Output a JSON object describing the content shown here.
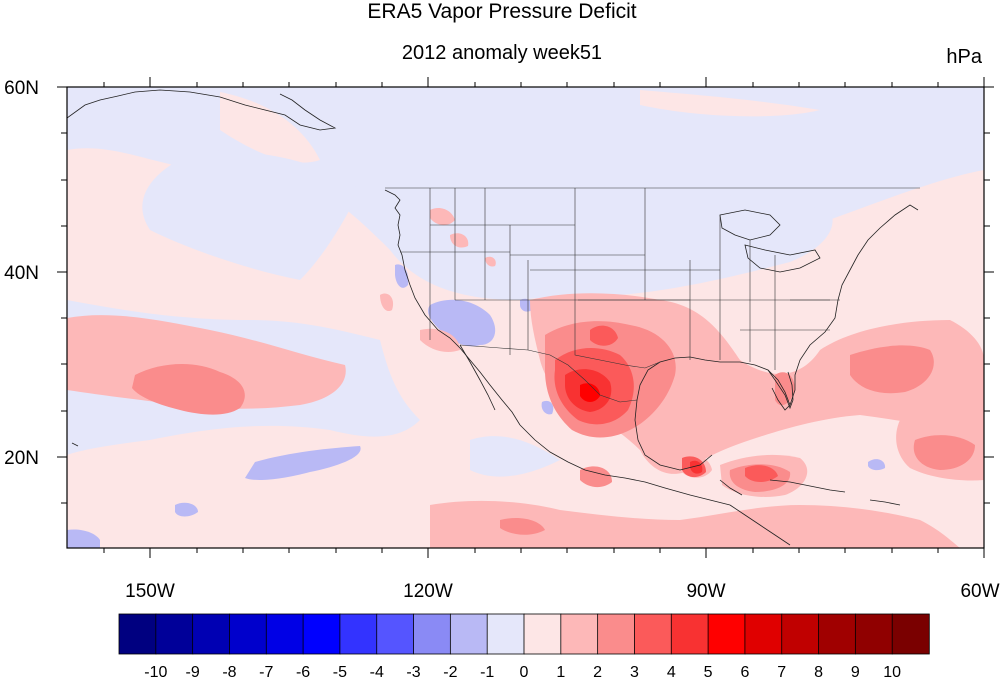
{
  "title": "ERA5 Vapor Pressure Deficit",
  "subtitle": "2012 anomaly week51",
  "units": "hPa",
  "map": {
    "projection": "cylindrical-equidistant",
    "lon_range": [
      -160,
      -60
    ],
    "lat_range": [
      10,
      60
    ],
    "x_ticks": [
      {
        "lon": -150,
        "label": "150W"
      },
      {
        "lon": -120,
        "label": "120W"
      },
      {
        "lon": -90,
        "label": "90W"
      },
      {
        "lon": -60,
        "label": "60W"
      }
    ],
    "y_ticks": [
      {
        "lat": 60,
        "label": "60N"
      },
      {
        "lat": 40,
        "label": "40N"
      },
      {
        "lat": 20,
        "label": "20N"
      }
    ]
  },
  "colorbar": {
    "labels": [
      "-10",
      "-9",
      "-8",
      "-7",
      "-6",
      "-5",
      "-4",
      "-3",
      "-2",
      "-1",
      "0",
      "1",
      "2",
      "3",
      "4",
      "5",
      "6",
      "7",
      "8",
      "9",
      "10"
    ],
    "colors": [
      "#000080",
      "#000099",
      "#0000b3",
      "#0000cc",
      "#0000e6",
      "#0000ff",
      "#3333ff",
      "#5555ff",
      "#8a8af5",
      "#b9b9f5",
      "#e5e7fa",
      "#fde6e6",
      "#fdb8b8",
      "#fa8c8c",
      "#fb5a5a",
      "#f83232",
      "#ff0000",
      "#e00000",
      "#c00000",
      "#a00000",
      "#900000",
      "#7a0000"
    ]
  }
}
